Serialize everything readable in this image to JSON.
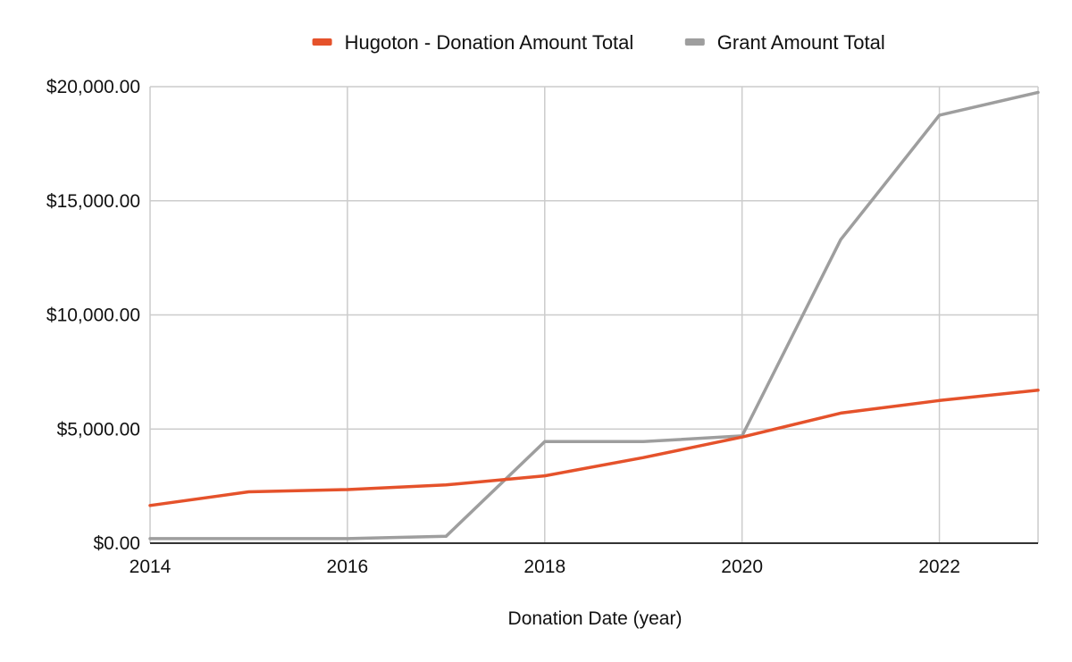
{
  "chart_data": {
    "type": "line",
    "title": "",
    "xlabel": "Donation Date (year)",
    "ylabel": "",
    "x": [
      2014,
      2015,
      2016,
      2017,
      2018,
      2019,
      2020,
      2021,
      2022,
      2023
    ],
    "xlim": [
      2014,
      2023
    ],
    "ylim": [
      0,
      20000
    ],
    "x_ticks": [
      "2014",
      "2016",
      "2018",
      "2020",
      "2022"
    ],
    "y_ticks": [
      "$0.00",
      "$5,000.00",
      "$10,000.00",
      "$15,000.00",
      "$20,000.00"
    ],
    "grid": true,
    "legend_position": "top",
    "series": [
      {
        "name": "Hugoton - Donation Amount Total",
        "color": "#e5522b",
        "values": [
          1650,
          2250,
          2350,
          2550,
          2950,
          3750,
          4650,
          5700,
          6250,
          6700
        ]
      },
      {
        "name": "Grant Amount Total",
        "color": "#9e9e9e",
        "values": [
          200,
          200,
          200,
          300,
          4450,
          4450,
          4700,
          13300,
          18750,
          19750
        ]
      }
    ]
  }
}
